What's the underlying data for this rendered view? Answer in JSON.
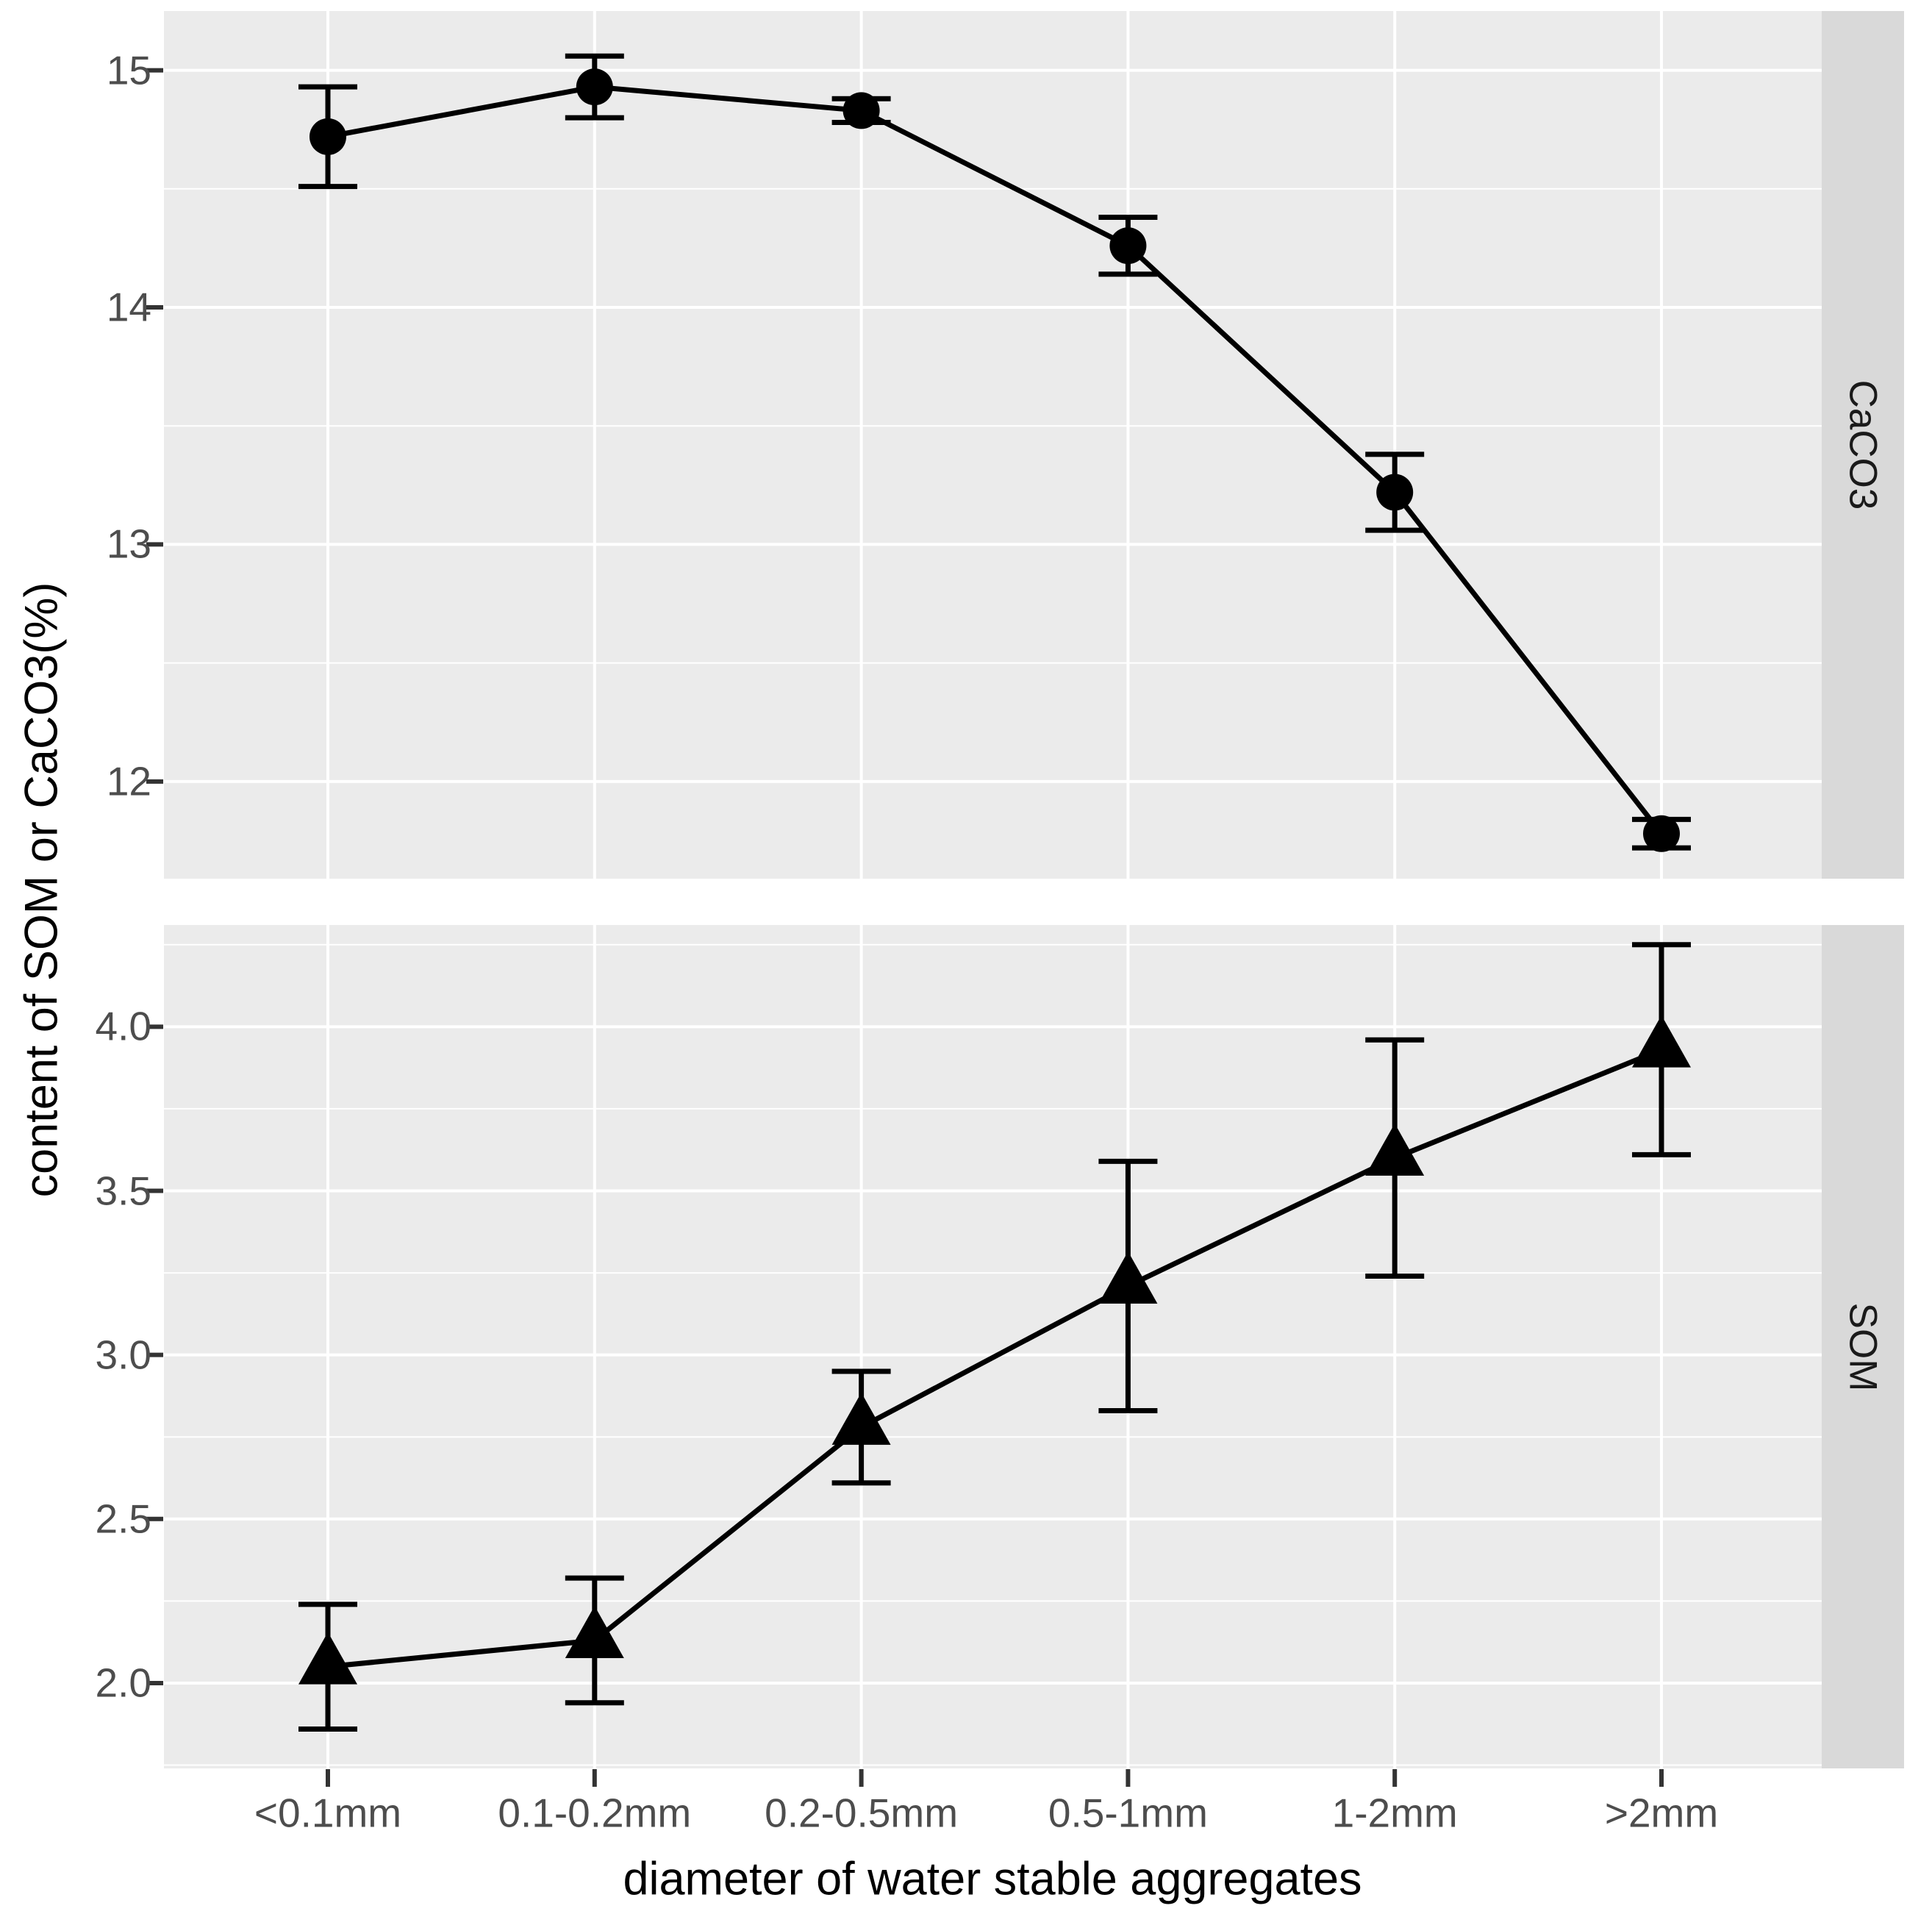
{
  "chart_data": {
    "type": "line",
    "title": "",
    "xlabel": "diameter of water stable aggregates",
    "ylabel": "content of SOM or CaCO3(%)",
    "categories": [
      "<0.1mm",
      "0.1-0.2mm",
      "0.2-0.5mm",
      "0.5-1mm",
      "1-2mm",
      ">2mm"
    ],
    "legend_position": "none",
    "grid": "white major and minor gridlines on grey panels",
    "facet_layout": "two stacked panels sharing x axis, facet strips on right",
    "facets": [
      {
        "label": "CaCO3",
        "marker": "circle",
        "series": [
          {
            "name": "CaCO3",
            "values": [
              14.72,
              14.93,
              14.83,
              14.26,
              13.22,
              11.78
            ],
            "errors": [
              0.21,
              0.13,
              0.05,
              0.12,
              0.16,
              0.06
            ]
          }
        ],
        "ytick_values": [
          15,
          14,
          13,
          12
        ],
        "ytick_labels": [
          "15",
          "14",
          "13",
          "12"
        ],
        "yminor_values": [
          14.5,
          13.5,
          12.5
        ],
        "ylim": [
          11.59,
          15.25
        ]
      },
      {
        "label": "SOM",
        "marker": "triangle-filled",
        "series": [
          {
            "name": "SOM",
            "values": [
              2.05,
              2.13,
              2.78,
              3.21,
              3.6,
              3.93
            ],
            "errors": [
              0.19,
              0.19,
              0.17,
              0.38,
              0.36,
              0.32
            ]
          }
        ],
        "ytick_values": [
          4.0,
          3.5,
          3.0,
          2.5,
          2.0
        ],
        "ytick_labels": [
          "4.0",
          "3.5",
          "3.0",
          "2.5",
          "2.0"
        ],
        "yminor_values": [
          4.25,
          3.75,
          3.25,
          2.75,
          2.25,
          1.75
        ],
        "ylim": [
          1.74,
          4.31
        ]
      }
    ],
    "colors": {
      "panel_background": "#ebebeb",
      "strip_background": "#d9d9d9",
      "gridline": "#ffffff",
      "tick_mark": "#333333",
      "tick_label": "#4d4d4d",
      "strip_text": "#1a1a1a",
      "series": "#000000",
      "figure_background": "#ffffff"
    }
  }
}
